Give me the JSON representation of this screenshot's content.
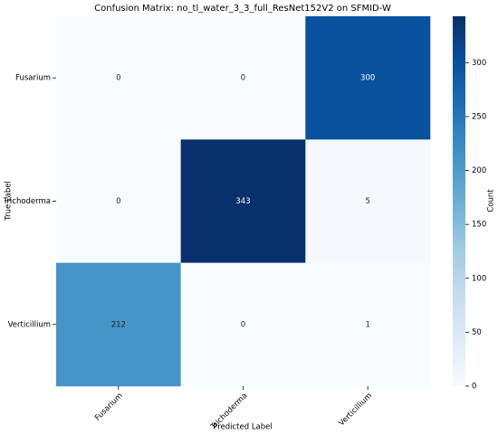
{
  "chart_data": {
    "type": "heatmap",
    "title": "Confusion Matrix: no_tl_water_3_3_full_ResNet152V2 on SFMID-W",
    "x_label": "Predicted Label",
    "y_label": "True Label",
    "x_categories": [
      "Fusarium",
      "Trichoderma",
      "Verticillium"
    ],
    "y_categories": [
      "Fusarium",
      "Trichoderma",
      "Verticillium"
    ],
    "z": [
      [
        0,
        0,
        300
      ],
      [
        0,
        343,
        5
      ],
      [
        212,
        0,
        1
      ]
    ],
    "colorbar_label": "Count",
    "zlim": [
      0,
      343
    ],
    "zticks": [
      0,
      50,
      100,
      150,
      200,
      250,
      300
    ],
    "colorscale": [
      "#f7fbff",
      "#deebf7",
      "#c6dbef",
      "#9ecae1",
      "#6baed6",
      "#4292c6",
      "#2171b5",
      "#08519c",
      "#08306b"
    ]
  }
}
